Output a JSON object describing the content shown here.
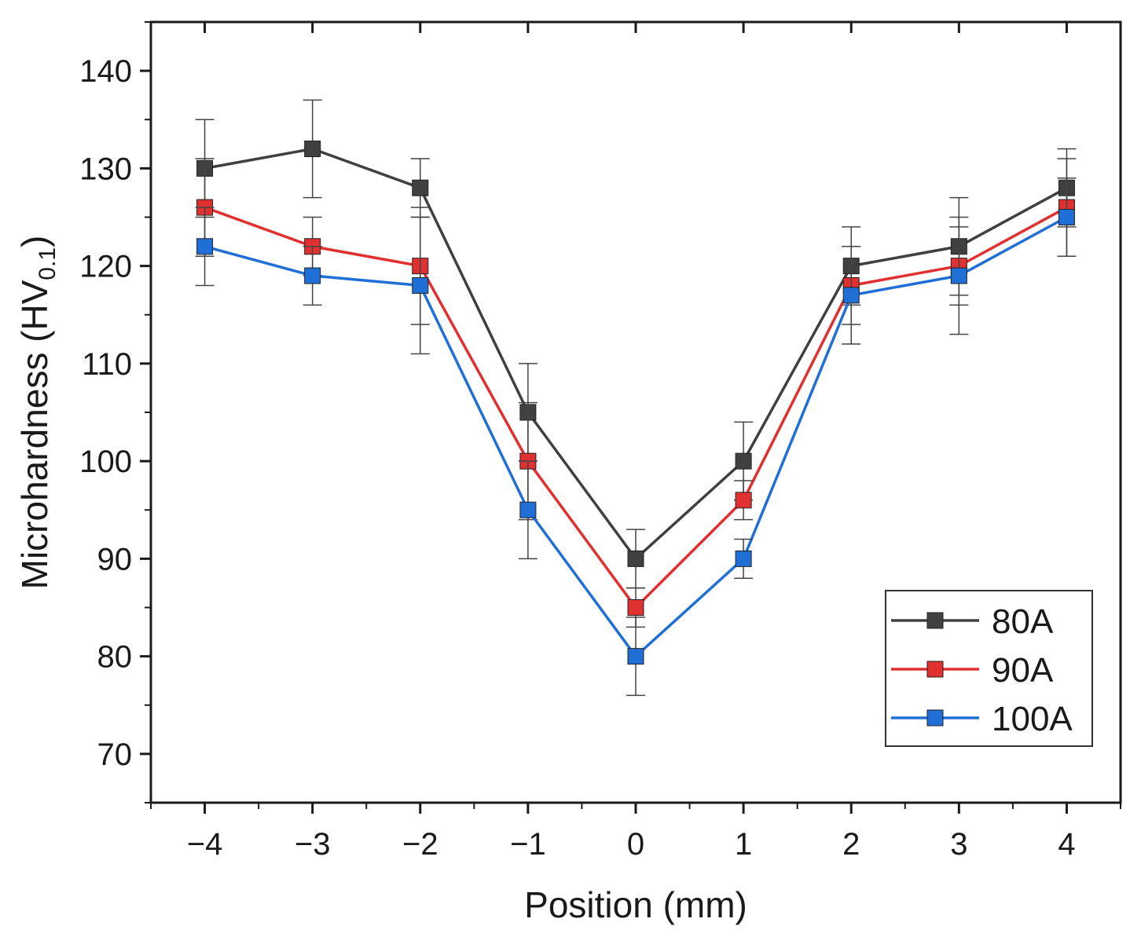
{
  "chart_data": {
    "type": "line",
    "title": "",
    "xlabel": "Position (mm)",
    "ylabel": {
      "main": "Microhardness (HV",
      "subscript": "0.1",
      "close": ")"
    },
    "x": [
      -4,
      -3,
      -2,
      -1,
      0,
      1,
      2,
      3,
      4
    ],
    "x_tick_labels": [
      "−4",
      "−3",
      "−2",
      "−1",
      "0",
      "1",
      "2",
      "3",
      "4"
    ],
    "xlim": [
      -4.5,
      4.5
    ],
    "ylim": [
      65,
      145
    ],
    "y_ticks": [
      70,
      80,
      90,
      100,
      110,
      120,
      130,
      140
    ],
    "y_tick_labels": [
      "70",
      "80",
      "90",
      "100",
      "110",
      "120",
      "130",
      "140"
    ],
    "grid": false,
    "legend_position": "bottom-right",
    "series": [
      {
        "name": "80A",
        "color": "#404040",
        "values": [
          130,
          132,
          128,
          105,
          90,
          100,
          120,
          122,
          128
        ],
        "errors": [
          5,
          5,
          3,
          5,
          3,
          4,
          4,
          5,
          4
        ]
      },
      {
        "name": "90A",
        "color": "#e03030",
        "values": [
          126,
          122,
          120,
          100,
          85,
          96,
          118,
          120,
          126
        ],
        "errors": [
          5,
          3,
          6,
          6,
          2,
          2,
          4,
          4,
          5
        ]
      },
      {
        "name": "100A",
        "color": "#1f6fd6",
        "values": [
          122,
          119,
          118,
          95,
          80,
          90,
          117,
          119,
          125
        ],
        "errors": [
          4,
          3,
          7,
          5,
          4,
          2,
          5,
          6,
          4
        ]
      }
    ]
  }
}
